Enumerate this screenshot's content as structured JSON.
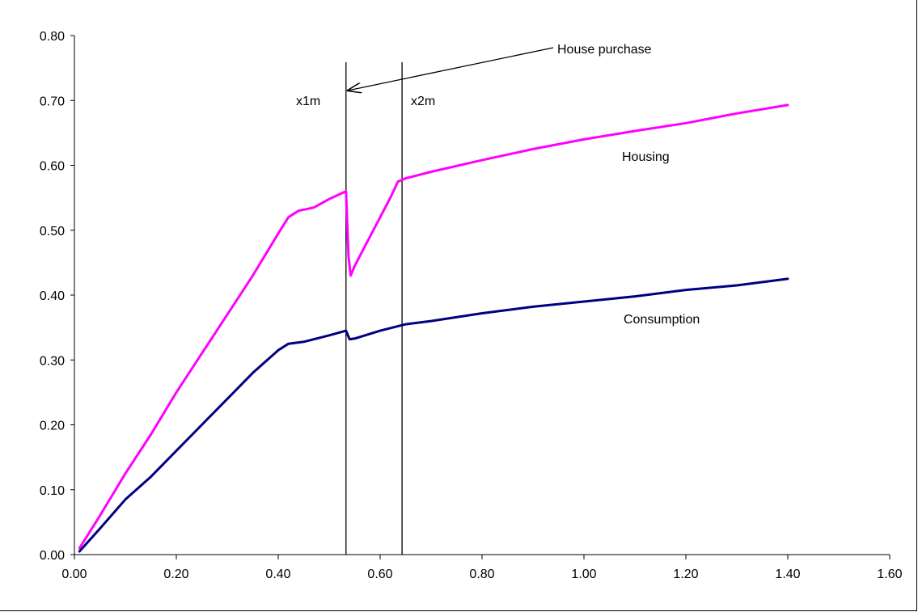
{
  "chart_data": {
    "type": "line",
    "xlim": [
      0,
      1.6
    ],
    "ylim": [
      0,
      0.8
    ],
    "x_ticks": [
      "0.00",
      "0.20",
      "0.40",
      "0.60",
      "0.80",
      "1.00",
      "1.20",
      "1.40",
      "1.60"
    ],
    "y_ticks": [
      "0.00",
      "0.10",
      "0.20",
      "0.30",
      "0.40",
      "0.50",
      "0.60",
      "0.70",
      "0.80"
    ],
    "grid": false,
    "series": [
      {
        "name": "Housing",
        "color": "#ff00ff",
        "points": [
          [
            0.01,
            0.01
          ],
          [
            0.05,
            0.06
          ],
          [
            0.1,
            0.125
          ],
          [
            0.15,
            0.185
          ],
          [
            0.2,
            0.25
          ],
          [
            0.25,
            0.31
          ],
          [
            0.3,
            0.37
          ],
          [
            0.35,
            0.43
          ],
          [
            0.4,
            0.495
          ],
          [
            0.42,
            0.52
          ],
          [
            0.44,
            0.53
          ],
          [
            0.47,
            0.535
          ],
          [
            0.5,
            0.548
          ],
          [
            0.533,
            0.56
          ],
          [
            0.538,
            0.46
          ],
          [
            0.542,
            0.43
          ],
          [
            0.55,
            0.445
          ],
          [
            0.57,
            0.475
          ],
          [
            0.6,
            0.52
          ],
          [
            0.62,
            0.55
          ],
          [
            0.635,
            0.575
          ],
          [
            0.65,
            0.58
          ],
          [
            0.7,
            0.59
          ],
          [
            0.8,
            0.608
          ],
          [
            0.9,
            0.625
          ],
          [
            1.0,
            0.64
          ],
          [
            1.1,
            0.653
          ],
          [
            1.2,
            0.665
          ],
          [
            1.3,
            0.68
          ],
          [
            1.4,
            0.693
          ]
        ]
      },
      {
        "name": "Consumption",
        "color": "#000080",
        "points": [
          [
            0.01,
            0.005
          ],
          [
            0.05,
            0.04
          ],
          [
            0.1,
            0.085
          ],
          [
            0.15,
            0.12
          ],
          [
            0.2,
            0.16
          ],
          [
            0.25,
            0.2
          ],
          [
            0.3,
            0.24
          ],
          [
            0.35,
            0.28
          ],
          [
            0.4,
            0.315
          ],
          [
            0.42,
            0.325
          ],
          [
            0.45,
            0.328
          ],
          [
            0.5,
            0.338
          ],
          [
            0.533,
            0.345
          ],
          [
            0.54,
            0.332
          ],
          [
            0.55,
            0.333
          ],
          [
            0.6,
            0.345
          ],
          [
            0.65,
            0.355
          ],
          [
            0.7,
            0.36
          ],
          [
            0.8,
            0.372
          ],
          [
            0.9,
            0.382
          ],
          [
            1.0,
            0.39
          ],
          [
            1.1,
            0.398
          ],
          [
            1.2,
            0.408
          ],
          [
            1.3,
            0.415
          ],
          [
            1.4,
            0.425
          ]
        ]
      }
    ],
    "vlines": [
      {
        "x": 0.533,
        "label": "x1m"
      },
      {
        "x": 0.643,
        "label": "x2m"
      }
    ],
    "annotations": [
      {
        "text": "House purchase",
        "target_x": 0.533,
        "target_y": 0.71
      }
    ]
  }
}
